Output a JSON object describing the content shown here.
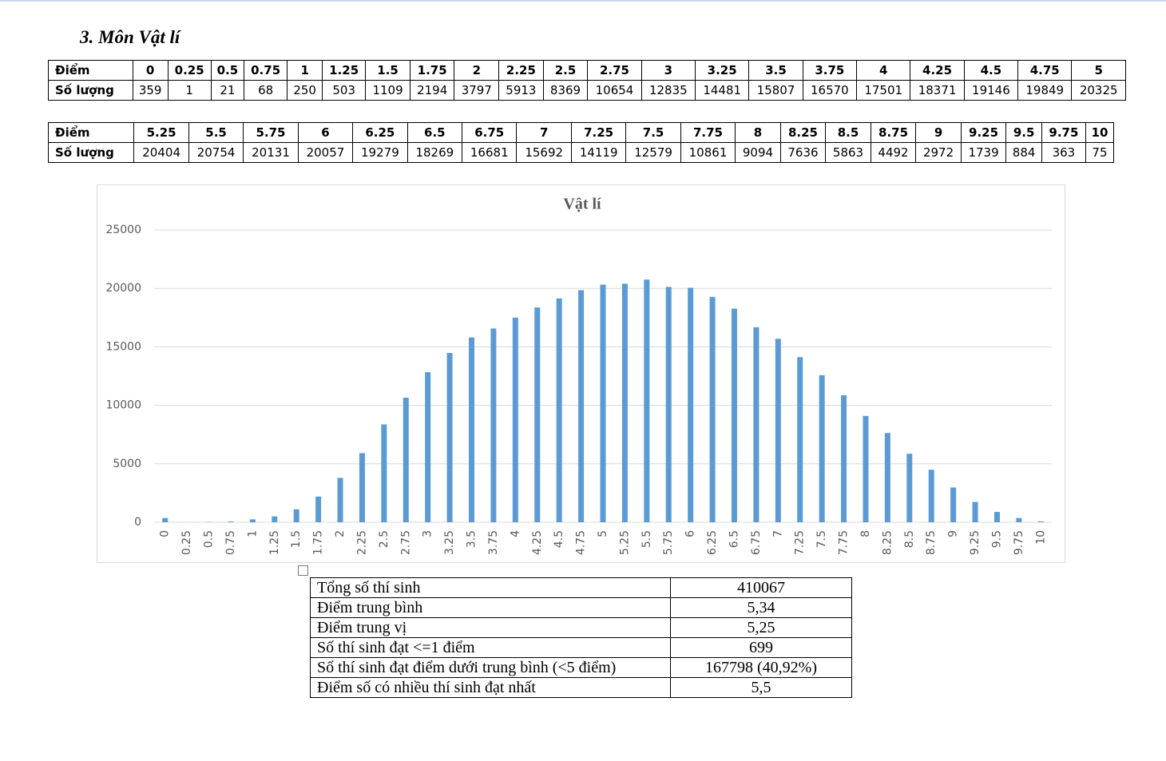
{
  "heading": "3. Môn Vật lí",
  "table1": {
    "rows": [
      [
        "Điểm",
        "0",
        "0.25",
        "0.5",
        "0.75",
        "1",
        "1.25",
        "1.5",
        "1.75",
        "2",
        "2.25",
        "2.5",
        "2.75",
        "3",
        "3.25",
        "3.5",
        "3.75",
        "4",
        "4.25",
        "4.5",
        "4.75",
        "5"
      ],
      [
        "Số lượng",
        359,
        1,
        21,
        68,
        250,
        503,
        1109,
        2194,
        3797,
        5913,
        8369,
        10654,
        12835,
        14481,
        15807,
        16570,
        17501,
        18371,
        19146,
        19849,
        20325
      ]
    ]
  },
  "table2": {
    "rows": [
      [
        "Điểm",
        "5.25",
        "5.5",
        "5.75",
        "6",
        "6.25",
        "6.5",
        "6.75",
        "7",
        "7.25",
        "7.5",
        "7.75",
        "8",
        "8.25",
        "8.5",
        "8.75",
        "9",
        "9.25",
        "9.5",
        "9.75",
        "10"
      ],
      [
        "Số lượng",
        20404,
        20754,
        20131,
        20057,
        19279,
        18269,
        16681,
        15692,
        14119,
        12579,
        10861,
        9094,
        7636,
        5863,
        4492,
        2972,
        1739,
        884,
        363,
        75
      ]
    ]
  },
  "chart_data": {
    "type": "bar",
    "title": "Vật lí",
    "categories": [
      "0",
      "0.25",
      "0.5",
      "0.75",
      "1",
      "1.25",
      "1.5",
      "1.75",
      "2",
      "2.25",
      "2.5",
      "2.75",
      "3",
      "3.25",
      "3.5",
      "3.75",
      "4",
      "4.25",
      "4.5",
      "4.75",
      "5",
      "5.25",
      "5.5",
      "5.75",
      "6",
      "6.25",
      "6.5",
      "6.75",
      "7",
      "7.25",
      "7.5",
      "7.75",
      "8",
      "8.25",
      "8.5",
      "8.75",
      "9",
      "9.25",
      "9.5",
      "9.75",
      "10"
    ],
    "values": [
      359,
      1,
      21,
      68,
      250,
      503,
      1109,
      2194,
      3797,
      5913,
      8369,
      10654,
      12835,
      14481,
      15807,
      16570,
      17501,
      18371,
      19146,
      19849,
      20325,
      20404,
      20754,
      20131,
      20057,
      19279,
      18269,
      16681,
      15692,
      14119,
      12579,
      10861,
      9094,
      7636,
      5863,
      4492,
      2972,
      1739,
      884,
      363,
      75
    ],
    "color": "#5b9bd5",
    "ylim": [
      0,
      25000
    ],
    "yticks": [
      0,
      5000,
      10000,
      15000,
      20000,
      25000
    ],
    "grid": true
  },
  "summary": {
    "rows": [
      [
        "Tổng số thí sinh",
        "410067"
      ],
      [
        "Điểm trung bình",
        "5,34"
      ],
      [
        "Điểm trung vị",
        "5,25"
      ],
      [
        "Số thí sinh đạt <=1 điểm",
        "699"
      ],
      [
        "Số thí sinh đạt điểm dưới trung bình (<5 điểm)",
        "167798 (40,92%)"
      ],
      [
        "Điểm số có nhiều thí sinh đạt nhất",
        "5,5"
      ]
    ]
  }
}
